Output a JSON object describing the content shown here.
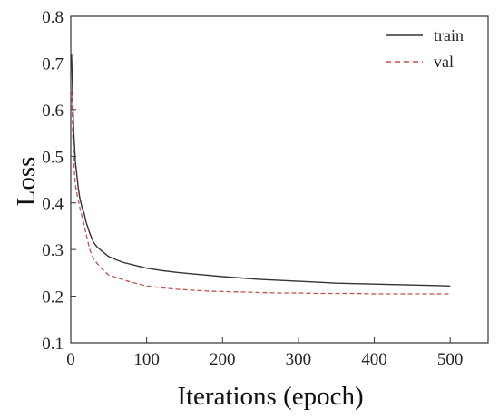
{
  "chart_data": {
    "type": "line",
    "xlabel": "Iterations (epoch)",
    "ylabel": "Loss",
    "xlim": [
      0,
      550
    ],
    "ylim": [
      0.1,
      0.8
    ],
    "xticks": [
      0,
      100,
      200,
      300,
      400,
      500
    ],
    "xtick_labels": [
      "0",
      "100",
      "200",
      "300",
      "400",
      "500"
    ],
    "yticks": [
      0.1,
      0.2,
      0.3,
      0.4,
      0.5,
      0.6,
      0.7,
      0.8
    ],
    "ytick_labels": [
      "0.1",
      "0.2",
      "0.3",
      "0.4",
      "0.5",
      "0.6",
      "0.7",
      "0.8"
    ],
    "grid": false,
    "legend_position": "top-right",
    "series": [
      {
        "name": "train",
        "color": "#333333",
        "line_style": "solid",
        "x": [
          1,
          2,
          3,
          4,
          5,
          6,
          8,
          10,
          12,
          15,
          18,
          20,
          25,
          30,
          35,
          40,
          50,
          60,
          70,
          80,
          90,
          100,
          120,
          140,
          160,
          180,
          200,
          225,
          250,
          275,
          300,
          325,
          350,
          375,
          400,
          425,
          450,
          475,
          500
        ],
        "y": [
          0.72,
          0.66,
          0.6,
          0.55,
          0.52,
          0.49,
          0.46,
          0.43,
          0.41,
          0.39,
          0.375,
          0.36,
          0.335,
          0.315,
          0.305,
          0.298,
          0.285,
          0.278,
          0.272,
          0.268,
          0.264,
          0.26,
          0.255,
          0.251,
          0.248,
          0.245,
          0.242,
          0.239,
          0.236,
          0.234,
          0.232,
          0.23,
          0.228,
          0.227,
          0.226,
          0.225,
          0.224,
          0.223,
          0.222
        ]
      },
      {
        "name": "val",
        "color": "#c0504d",
        "line_style": "dashed",
        "x": [
          1,
          2,
          3,
          4,
          5,
          6,
          8,
          10,
          12,
          15,
          18,
          20,
          25,
          30,
          35,
          40,
          50,
          60,
          70,
          80,
          90,
          100,
          120,
          140,
          160,
          180,
          200,
          225,
          250,
          275,
          300,
          325,
          350,
          375,
          400,
          425,
          450,
          475,
          500
        ],
        "y": [
          0.64,
          0.58,
          0.53,
          0.49,
          0.46,
          0.44,
          0.42,
          0.405,
          0.39,
          0.37,
          0.35,
          0.335,
          0.3,
          0.28,
          0.27,
          0.26,
          0.245,
          0.24,
          0.235,
          0.23,
          0.226,
          0.222,
          0.218,
          0.215,
          0.213,
          0.211,
          0.21,
          0.209,
          0.208,
          0.207,
          0.207,
          0.206,
          0.206,
          0.206,
          0.205,
          0.205,
          0.205,
          0.205,
          0.205
        ]
      }
    ]
  }
}
